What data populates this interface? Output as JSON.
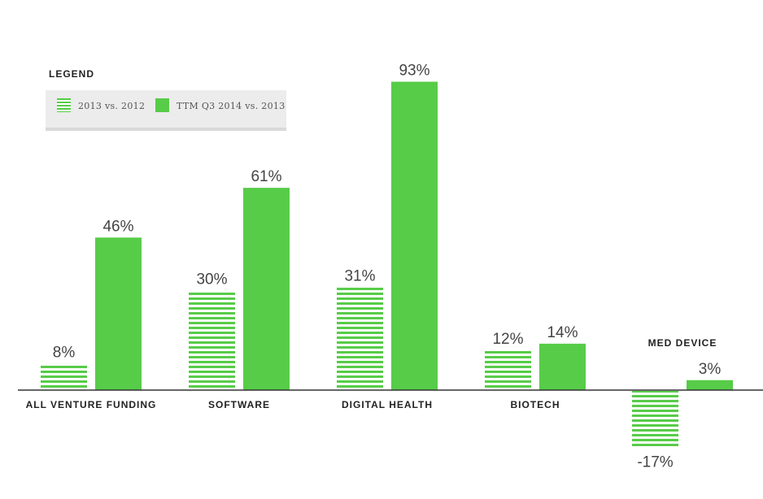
{
  "legend": {
    "title": "LEGEND",
    "items": [
      {
        "label": "2013 vs. 2012",
        "style": "striped"
      },
      {
        "label": "TTM Q3 2014 vs. 2013",
        "style": "solid"
      }
    ]
  },
  "colors": {
    "bar": "#57cc48",
    "axis": "#333333",
    "value_label": "#444444",
    "category_label": "#222222"
  },
  "chart_data": {
    "type": "bar",
    "categories": [
      "ALL VENTURE FUNDING",
      "SOFTWARE",
      "DIGITAL HEALTH",
      "BIOTECH",
      "MED DEVICE"
    ],
    "series": [
      {
        "name": "2013 vs. 2012",
        "values": [
          8,
          30,
          31,
          12,
          -17
        ],
        "labels": [
          "8%",
          "30%",
          "31%",
          "12%",
          "-17%"
        ]
      },
      {
        "name": "TTM Q3 2014 vs. 2013",
        "values": [
          46,
          61,
          93,
          14,
          3
        ],
        "labels": [
          "46%",
          "61%",
          "93%",
          "14%",
          "3%"
        ]
      }
    ],
    "ylim": [
      -25,
      100
    ],
    "grid": false,
    "legend_position": "top-left"
  }
}
